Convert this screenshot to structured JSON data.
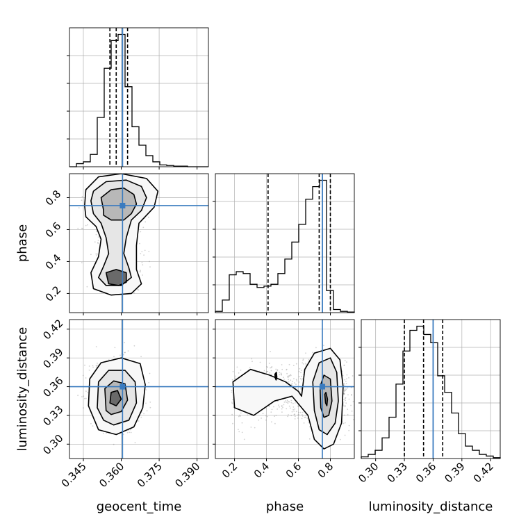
{
  "colors": {
    "truth": "#3a7bbf",
    "hist": "#000000",
    "grid": "#b0b0b0",
    "scatter": "#7a7a7a"
  },
  "chart_data": {
    "type": "corner",
    "parameters": [
      "geocent_time",
      "phase",
      "luminosity_distance"
    ],
    "ranges": {
      "geocent_time": [
        0.3395,
        0.3945
      ],
      "phase": [
        0.08,
        0.95
      ],
      "luminosity_distance": [
        0.285,
        0.43
      ]
    },
    "truths": {
      "geocent_time": 0.3605,
      "phase": 0.75,
      "luminosity_distance": 0.36
    },
    "quantiles": {
      "geocent_time": [
        0.3555,
        0.358,
        0.3625
      ],
      "phase": [
        0.41,
        0.73,
        0.8
      ],
      "luminosity_distance": [
        0.33,
        0.35,
        0.37
      ]
    },
    "ticks": {
      "geocent_time": [
        "0.345",
        "0.360",
        "0.375",
        "0.390"
      ],
      "phase": [
        "0.2",
        "0.4",
        "0.6",
        "0.8"
      ],
      "luminosity_distance": [
        "0.30",
        "0.33",
        "0.36",
        "0.39",
        "0.42"
      ]
    },
    "histograms": {
      "geocent_time": {
        "edges_start": 0.3395,
        "bin_width": 0.00275,
        "counts": [
          0,
          5,
          8,
          20,
          80,
          160,
          205,
          215,
          130,
          65,
          35,
          18,
          8,
          3,
          2,
          1,
          1,
          0,
          0,
          0
        ]
      },
      "phase": {
        "edges_start": 0.08,
        "bin_width": 0.0435,
        "counts": [
          2,
          20,
          60,
          65,
          62,
          45,
          40,
          42,
          45,
          62,
          85,
          112,
          140,
          180,
          200,
          210,
          35,
          5,
          2,
          1
        ]
      },
      "luminosity_distance": {
        "edges_start": 0.285,
        "bin_width": 0.00725,
        "counts": [
          2,
          5,
          10,
          25,
          50,
          90,
          130,
          155,
          160,
          150,
          140,
          100,
          80,
          55,
          30,
          15,
          10,
          5,
          3,
          1
        ]
      }
    },
    "contours_2d": {
      "phase_vs_geocent_time": {
        "levels": [
          [
            [
              0.353,
              0.72
            ],
            [
              0.352,
              0.8
            ],
            [
              0.356,
              0.85
            ],
            [
              0.361,
              0.86
            ],
            [
              0.365,
              0.82
            ],
            [
              0.366,
              0.76
            ],
            [
              0.364,
              0.7
            ],
            [
              0.361,
              0.66
            ],
            [
              0.356,
              0.66
            ],
            [
              0.353,
              0.69
            ]
          ],
          [
            [
              0.348,
              0.78
            ],
            [
              0.349,
              0.84
            ],
            [
              0.354,
              0.9
            ],
            [
              0.362,
              0.91
            ],
            [
              0.368,
              0.87
            ],
            [
              0.37,
              0.8
            ],
            [
              0.368,
              0.72
            ],
            [
              0.364,
              0.66
            ],
            [
              0.362,
              0.55
            ],
            [
              0.361,
              0.45
            ],
            [
              0.363,
              0.36
            ],
            [
              0.364,
              0.3
            ],
            [
              0.36,
              0.25
            ],
            [
              0.354,
              0.25
            ],
            [
              0.351,
              0.3
            ],
            [
              0.353,
              0.37
            ],
            [
              0.355,
              0.45
            ],
            [
              0.354,
              0.55
            ],
            [
              0.352,
              0.64
            ],
            [
              0.349,
              0.7
            ]
          ],
          [
            [
              0.3455,
              0.75
            ],
            [
              0.346,
              0.85
            ],
            [
              0.351,
              0.93
            ],
            [
              0.36,
              0.95
            ],
            [
              0.37,
              0.92
            ],
            [
              0.3745,
              0.84
            ],
            [
              0.373,
              0.74
            ],
            [
              0.367,
              0.64
            ],
            [
              0.366,
              0.5
            ],
            [
              0.366,
              0.35
            ],
            [
              0.368,
              0.26
            ],
            [
              0.364,
              0.2
            ],
            [
              0.356,
              0.19
            ],
            [
              0.349,
              0.23
            ],
            [
              0.348,
              0.33
            ],
            [
              0.351,
              0.43
            ],
            [
              0.352,
              0.54
            ],
            [
              0.35,
              0.62
            ],
            [
              0.346,
              0.68
            ]
          ],
          [
            [
              0.355,
              0.26
            ],
            [
              0.354,
              0.33
            ],
            [
              0.358,
              0.35
            ],
            [
              0.362,
              0.33
            ],
            [
              0.362,
              0.27
            ],
            [
              0.359,
              0.25
            ]
          ]
        ]
      },
      "luminosity_distance_vs_geocent_time": {
        "levels": [
          [
            [
              0.3555,
              0.343
            ],
            [
              0.356,
              0.354
            ],
            [
              0.3585,
              0.356
            ],
            [
              0.36,
              0.347
            ],
            [
              0.358,
              0.34
            ]
          ],
          [
            [
              0.354,
              0.335
            ],
            [
              0.3535,
              0.358
            ],
            [
              0.357,
              0.366
            ],
            [
              0.3615,
              0.363
            ],
            [
              0.3625,
              0.346
            ],
            [
              0.36,
              0.334
            ],
            [
              0.356,
              0.331
            ]
          ],
          [
            [
              0.3505,
              0.338
            ],
            [
              0.351,
              0.365
            ],
            [
              0.355,
              0.377
            ],
            [
              0.3615,
              0.377
            ],
            [
              0.3655,
              0.365
            ],
            [
              0.366,
              0.343
            ],
            [
              0.363,
              0.325
            ],
            [
              0.357,
              0.32
            ],
            [
              0.353,
              0.325
            ]
          ],
          [
            [
              0.347,
              0.34
            ],
            [
              0.3475,
              0.368
            ],
            [
              0.352,
              0.385
            ],
            [
              0.36,
              0.39
            ],
            [
              0.3675,
              0.384
            ],
            [
              0.3695,
              0.362
            ],
            [
              0.3685,
              0.338
            ],
            [
              0.365,
              0.318
            ],
            [
              0.358,
              0.31
            ],
            [
              0.351,
              0.315
            ]
          ]
        ]
      },
      "luminosity_distance_vs_phase": {
        "levels": [
          [
            [
              0.77,
              0.343
            ],
            [
              0.765,
              0.352
            ],
            [
              0.772,
              0.354
            ],
            [
              0.782,
              0.347
            ],
            [
              0.778,
              0.34
            ]
          ],
          [
            [
              0.74,
              0.338
            ],
            [
              0.735,
              0.36
            ],
            [
              0.76,
              0.372
            ],
            [
              0.8,
              0.368
            ],
            [
              0.81,
              0.345
            ],
            [
              0.79,
              0.33
            ],
            [
              0.76,
              0.328
            ]
          ],
          [
            [
              0.7,
              0.335
            ],
            [
              0.69,
              0.365
            ],
            [
              0.73,
              0.385
            ],
            [
              0.8,
              0.39
            ],
            [
              0.84,
              0.375
            ],
            [
              0.85,
              0.345
            ],
            [
              0.83,
              0.322
            ],
            [
              0.78,
              0.31
            ],
            [
              0.73,
              0.315
            ]
          ],
          [
            [
              0.62,
              0.35
            ],
            [
              0.64,
              0.378
            ],
            [
              0.7,
              0.395
            ],
            [
              0.8,
              0.4
            ],
            [
              0.86,
              0.388
            ],
            [
              0.88,
              0.36
            ],
            [
              0.87,
              0.322
            ],
            [
              0.82,
              0.3
            ],
            [
              0.76,
              0.295
            ],
            [
              0.7,
              0.305
            ],
            [
              0.66,
              0.33
            ],
            [
              0.56,
              0.35
            ],
            [
              0.45,
              0.345
            ],
            [
              0.32,
              0.33
            ],
            [
              0.2,
              0.338
            ],
            [
              0.19,
              0.365
            ],
            [
              0.3,
              0.378
            ],
            [
              0.42,
              0.372
            ],
            [
              0.52,
              0.365
            ],
            [
              0.6,
              0.355
            ]
          ],
          [
            [
              0.455,
              0.369
            ],
            [
              0.453,
              0.373
            ],
            [
              0.462,
              0.375
            ],
            [
              0.465,
              0.37
            ],
            [
              0.46,
              0.367
            ]
          ]
        ]
      }
    }
  }
}
